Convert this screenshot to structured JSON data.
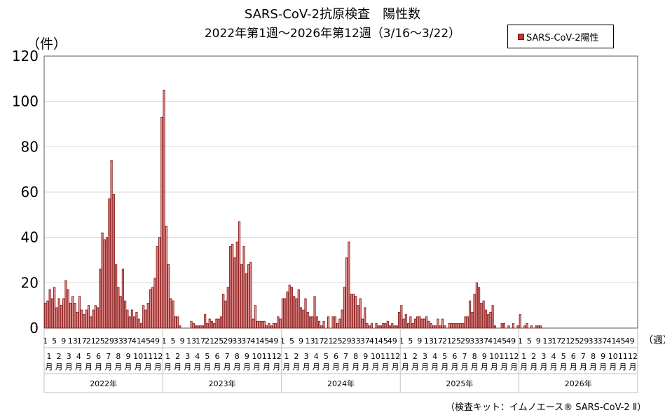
{
  "chart_data": {
    "type": "bar",
    "title": "SARS-CoV-2抗原検査　陽性数",
    "subtitle": "2022年第1週〜2026年第12週（3/16〜3/22）",
    "ylabel": "（件）",
    "xlabel": "（週）",
    "ylim": [
      0,
      120
    ],
    "yticks": [
      0,
      20,
      40,
      60,
      80,
      100,
      120
    ],
    "grid": true,
    "legend_position": "top-right",
    "week_tick_labels": [
      "1",
      "5",
      "9",
      "13",
      "17",
      "21",
      "25",
      "29",
      "33",
      "37",
      "41",
      "45",
      "49"
    ],
    "month_labels": [
      "1",
      "2",
      "3",
      "4",
      "5",
      "6",
      "7",
      "8",
      "9",
      "10",
      "11",
      "12"
    ],
    "month_suffix": "月",
    "series": [
      {
        "name": "SARS-CoV-2陽性",
        "color": "#8b1a1a",
        "fill": "#e79a9a",
        "years": [
          {
            "year": "2022年",
            "values": [
              11,
              12,
              17,
              13,
              18,
              9,
              13,
              10,
              13,
              21,
              17,
              11,
              14,
              11,
              7,
              14,
              8,
              6,
              8,
              10,
              5,
              8,
              10,
              9,
              26,
              42,
              39,
              40,
              57,
              74,
              59,
              28,
              18,
              14,
              26,
              12,
              8,
              5,
              8,
              5,
              7,
              4,
              2,
              10,
              8,
              11,
              17,
              18,
              22,
              36,
              40,
              93
            ]
          },
          {
            "year": "2023年",
            "values": [
              105,
              45,
              28,
              13,
              12,
              5,
              5,
              1,
              0,
              0,
              0,
              0,
              3,
              2,
              1,
              1,
              1,
              1,
              6,
              2,
              4,
              3,
              2,
              4,
              4,
              5,
              15,
              12,
              18,
              36,
              37,
              31,
              38,
              47,
              28,
              36,
              24,
              28,
              29,
              4,
              10,
              3,
              3,
              3,
              3,
              1,
              2,
              1,
              2,
              2,
              5,
              4
            ]
          },
          {
            "year": "2024年",
            "values": [
              13,
              13,
              16,
              19,
              18,
              14,
              13,
              17,
              9,
              8,
              13,
              7,
              5,
              5,
              14,
              5,
              3,
              1,
              3,
              0,
              5,
              0,
              5,
              5,
              2,
              4,
              8,
              18,
              31,
              38,
              15,
              15,
              14,
              10,
              13,
              4,
              9,
              2,
              1,
              2,
              0,
              2,
              1,
              1,
              2,
              2,
              3,
              1,
              2,
              1,
              1,
              7
            ]
          },
          {
            "year": "2025年",
            "values": [
              10,
              4,
              6,
              2,
              5,
              2,
              4,
              5,
              5,
              4,
              4,
              5,
              3,
              2,
              1,
              1,
              4,
              1,
              4,
              1,
              0,
              2,
              2,
              2,
              2,
              2,
              2,
              2,
              5,
              5,
              12,
              7,
              15,
              20,
              18,
              11,
              12,
              8,
              6,
              7,
              10,
              1,
              0,
              0,
              2,
              2,
              0,
              1,
              0,
              2,
              0,
              1
            ]
          },
          {
            "year": "2026年",
            "values": [
              6,
              0,
              1,
              2,
              0,
              1,
              0,
              1,
              1,
              1,
              0,
              0
            ]
          }
        ]
      }
    ]
  },
  "legend": {
    "label": "SARS-CoV-2陽性"
  },
  "footnote": "（検査キット：イムノエース® SARS-CoV-2 Ⅱ）"
}
